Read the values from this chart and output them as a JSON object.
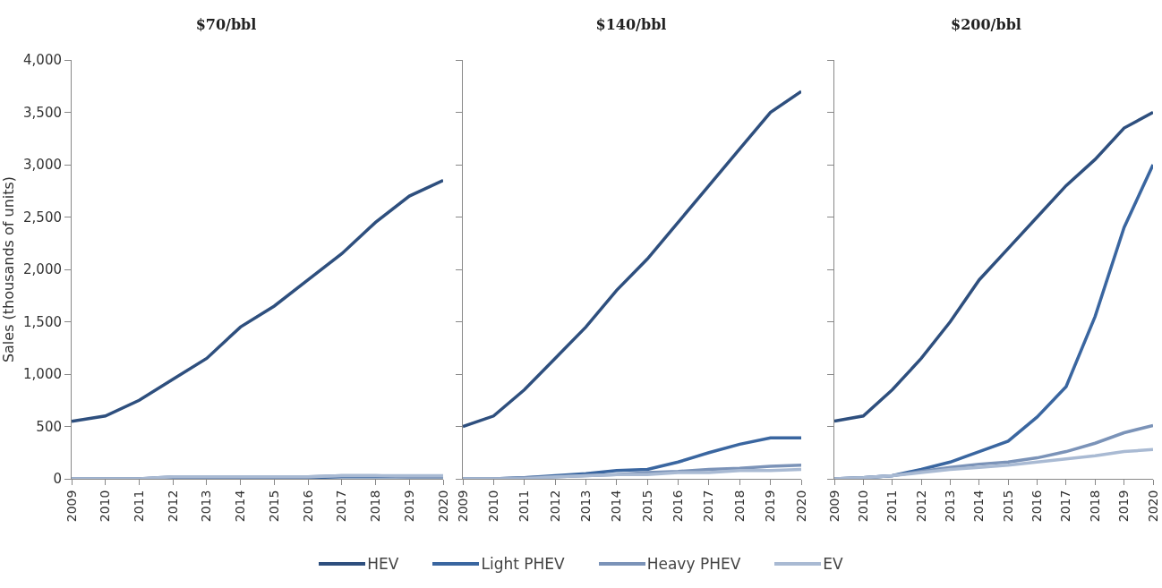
{
  "chart_data": [
    {
      "type": "line",
      "title": "$70/bbl",
      "ylabel": "Sales (thousands of units)",
      "categories": [
        "2009",
        "2010",
        "2011",
        "2012",
        "2013",
        "2014",
        "2015",
        "2016",
        "2017",
        "2018",
        "2019",
        "2020"
      ],
      "ylim": [
        0,
        4000
      ],
      "yticks": [
        0,
        500,
        {
          "value": 1000,
          "label": "1,000"
        },
        {
          "value": 1500,
          "label": "1,500"
        },
        {
          "value": 2000,
          "label": "2,000"
        },
        {
          "value": 2500,
          "label": "2,500"
        },
        {
          "value": 3000,
          "label": "3,000"
        },
        {
          "value": 3500,
          "label": "3,500"
        },
        {
          "value": 4000,
          "label": "4,000"
        }
      ],
      "grid": false,
      "legend": "bottom",
      "marker": "none",
      "line_style": "solid",
      "series": [
        {
          "name": "HEV",
          "color": "#2e4f7e",
          "values": [
            550,
            600,
            750,
            950,
            1150,
            1450,
            1650,
            1900,
            2150,
            2450,
            2700,
            2850
          ]
        },
        {
          "name": "Light PHEV",
          "color": "#3a66a0",
          "values": [
            0,
            0,
            0,
            10,
            10,
            10,
            10,
            10,
            20,
            20,
            20,
            20
          ]
        },
        {
          "name": "Heavy PHEV",
          "color": "#7b93b8",
          "values": [
            0,
            0,
            0,
            20,
            20,
            20,
            20,
            20,
            30,
            30,
            20,
            20
          ]
        },
        {
          "name": "EV",
          "color": "#a9bad3",
          "values": [
            0,
            0,
            0,
            20,
            20,
            20,
            20,
            20,
            30,
            30,
            30,
            30
          ]
        }
      ]
    },
    {
      "type": "line",
      "title": "$140/bbl",
      "categories": [
        "2009",
        "2010",
        "2011",
        "2012",
        "2013",
        "2014",
        "2015",
        "2016",
        "2017",
        "2018",
        "2019",
        "2020"
      ],
      "ylim": [
        0,
        4000
      ],
      "yticks": [
        0,
        500,
        1000,
        1500,
        2000,
        2500,
        3000,
        3500,
        4000
      ],
      "tick_labels": "x",
      "grid": false,
      "marker": "none",
      "line_style": "solid",
      "series": [
        {
          "name": "HEV",
          "color": "#2e4f7e",
          "values": [
            500,
            600,
            850,
            1150,
            1450,
            1800,
            2100,
            2450,
            2800,
            3150,
            3500,
            3700
          ]
        },
        {
          "name": "Light PHEV",
          "color": "#3a66a0",
          "values": [
            0,
            0,
            10,
            30,
            50,
            80,
            90,
            160,
            250,
            330,
            390,
            390
          ]
        },
        {
          "name": "Heavy PHEV",
          "color": "#7b93b8",
          "values": [
            0,
            0,
            10,
            20,
            30,
            40,
            60,
            70,
            90,
            100,
            120,
            130
          ]
        },
        {
          "name": "EV",
          "color": "#a9bad3",
          "values": [
            0,
            0,
            0,
            20,
            30,
            40,
            40,
            60,
            60,
            80,
            80,
            90
          ]
        }
      ]
    },
    {
      "type": "line",
      "title": "$200/bbl",
      "categories": [
        "2009",
        "2010",
        "2011",
        "2012",
        "2013",
        "2014",
        "2015",
        "2016",
        "2017",
        "2018",
        "2019",
        "2020"
      ],
      "ylim": [
        0,
        4000
      ],
      "yticks": [
        0,
        500,
        1000,
        1500,
        2000,
        2500,
        3000,
        3500,
        4000
      ],
      "tick_labels": "x",
      "grid": false,
      "marker": "none",
      "line_style": "solid",
      "series": [
        {
          "name": "HEV",
          "color": "#2e4f7e",
          "values": [
            550,
            600,
            850,
            1150,
            1500,
            1900,
            2200,
            2500,
            2800,
            3050,
            3350,
            3500
          ]
        },
        {
          "name": "Light PHEV",
          "color": "#3a66a0",
          "values": [
            0,
            10,
            30,
            90,
            160,
            260,
            360,
            590,
            880,
            1550,
            2400,
            3000
          ]
        },
        {
          "name": "Heavy PHEV",
          "color": "#7b93b8",
          "values": [
            0,
            10,
            30,
            70,
            110,
            140,
            160,
            200,
            260,
            340,
            440,
            510
          ]
        },
        {
          "name": "EV",
          "color": "#a9bad3",
          "values": [
            0,
            10,
            30,
            60,
            90,
            110,
            130,
            160,
            190,
            220,
            260,
            280
          ]
        }
      ]
    }
  ]
}
